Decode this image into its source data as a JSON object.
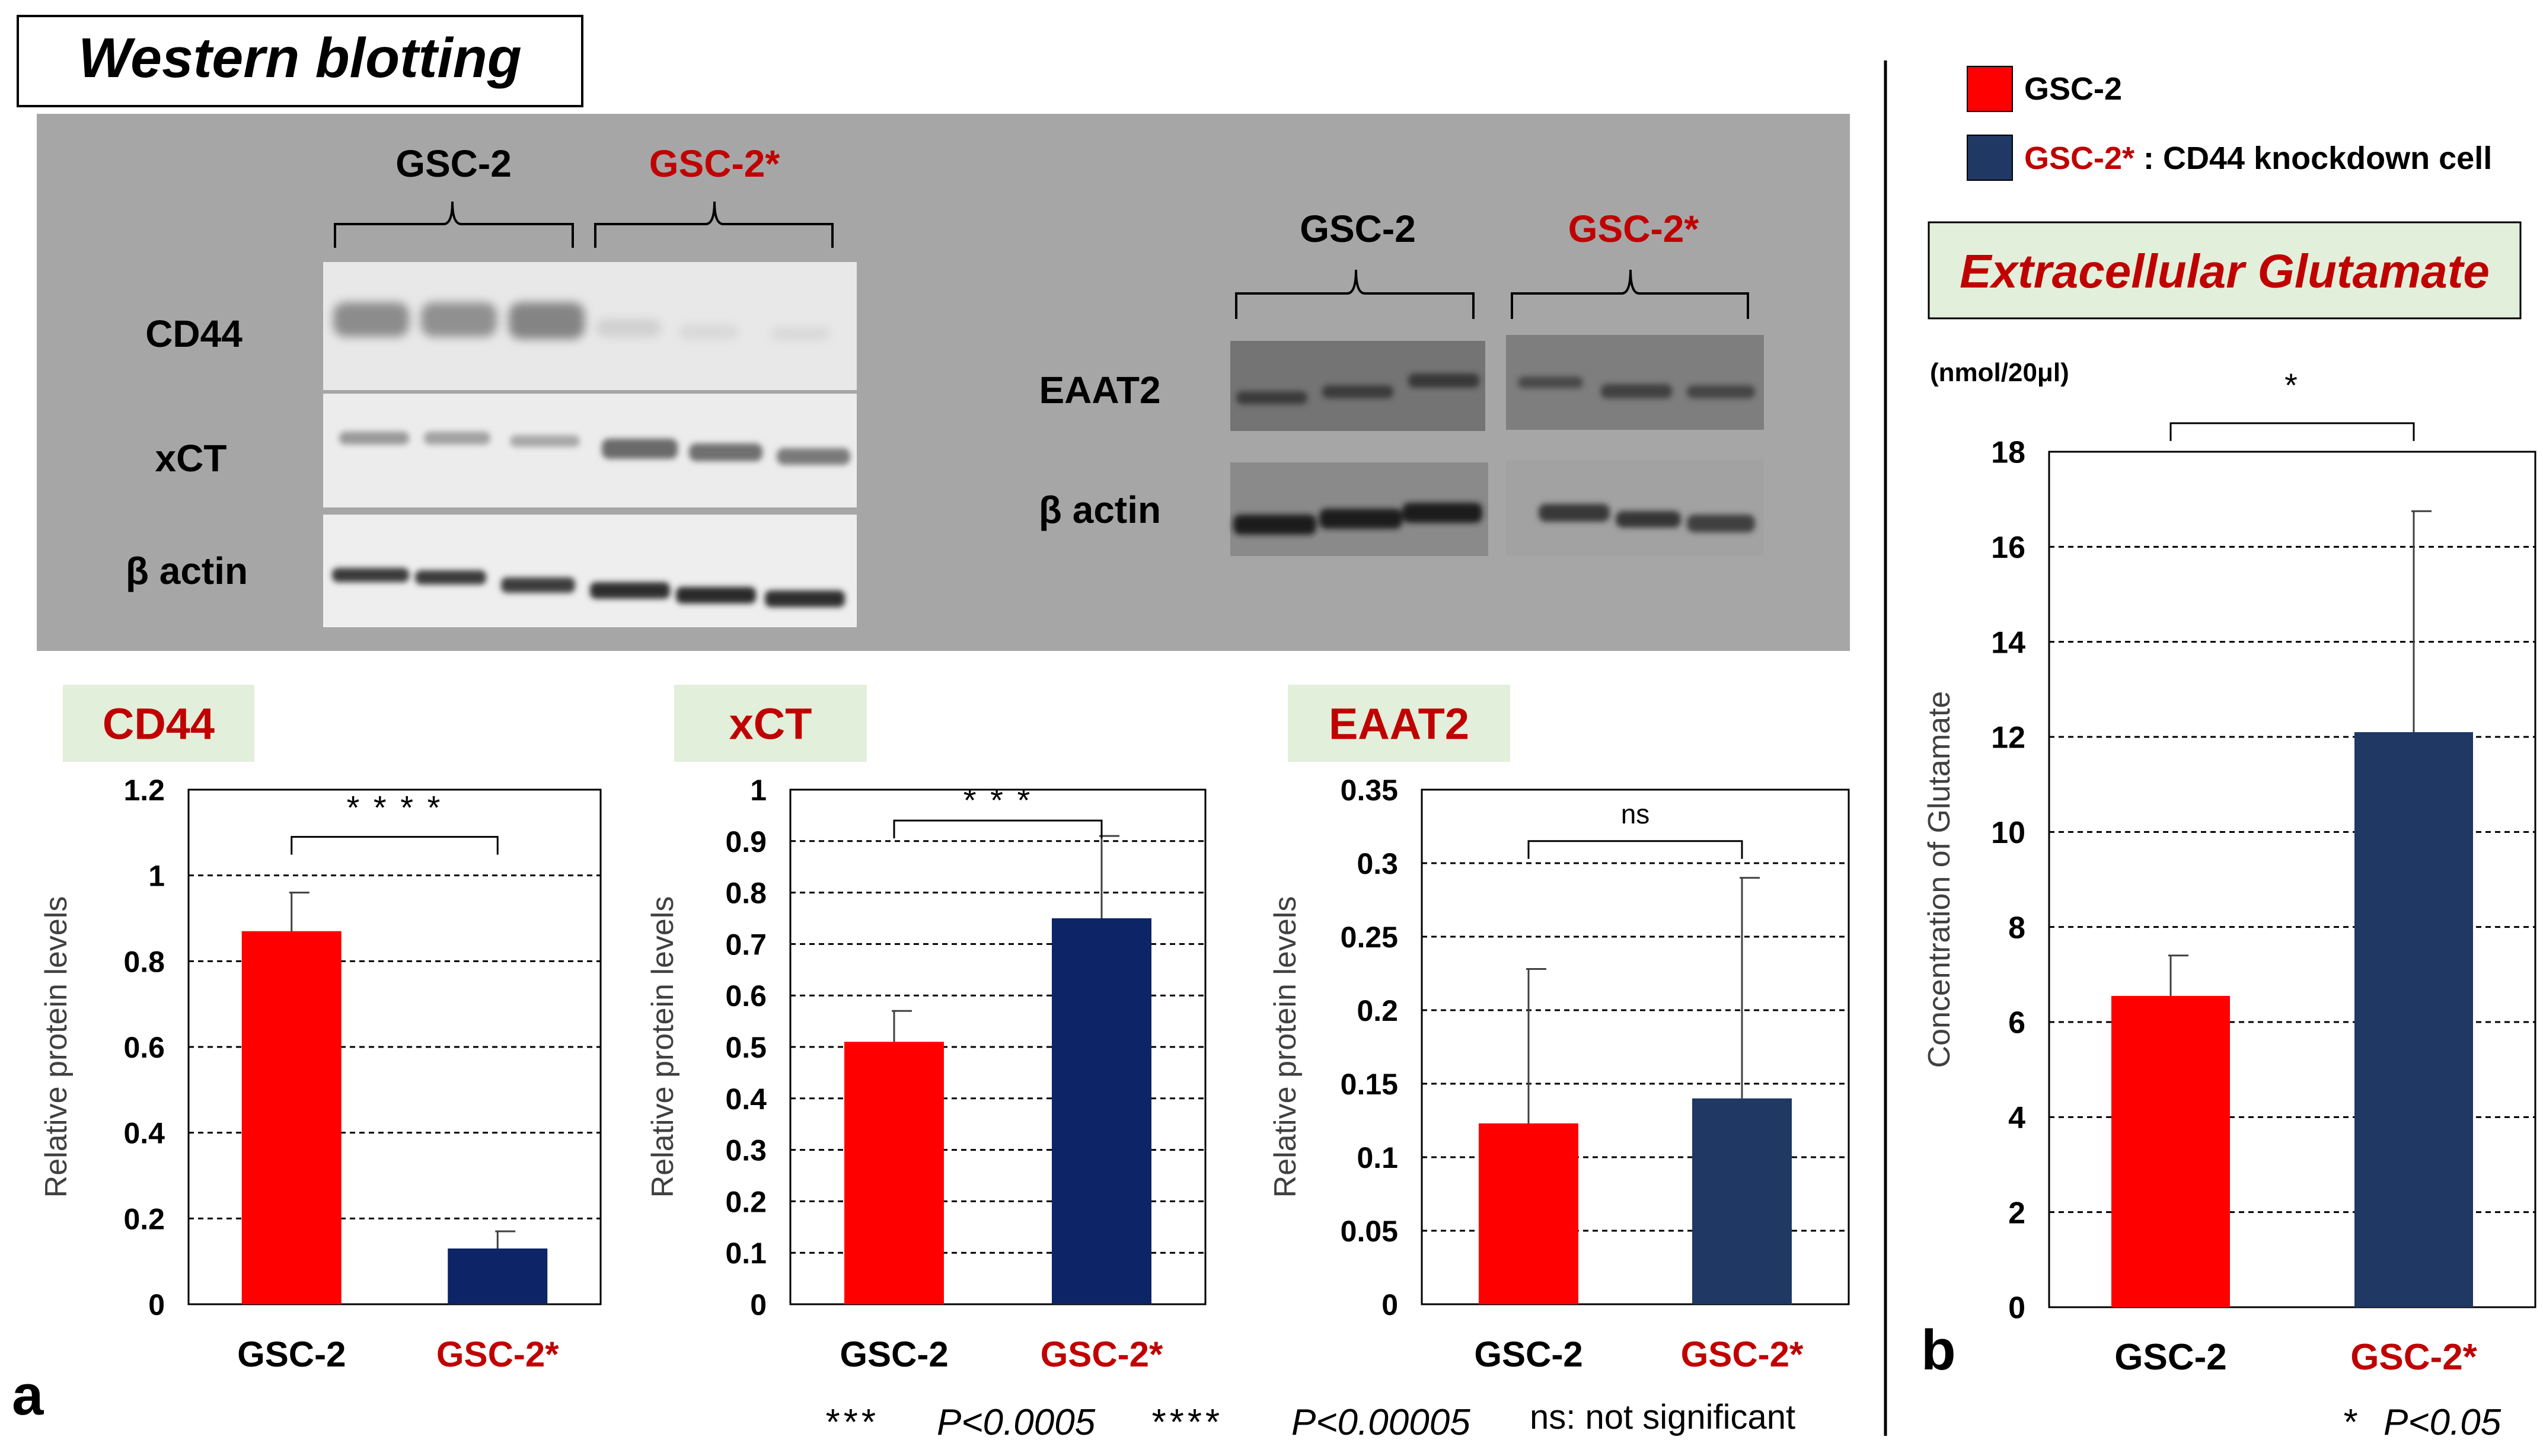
{
  "colors": {
    "gsc2": "#ff0000",
    "gsc2_star": "#0d2466",
    "gsc2_star_alt": "#1f3864",
    "label_red": "#c00000",
    "panel_gray": "#a6a6a6",
    "title_box_fill": "#e2efda",
    "glutamate_title": "#c00000"
  },
  "western": {
    "title": "Western blotting",
    "left_group_1": "GSC-2",
    "left_group_2": "GSC-2*",
    "row_labels": [
      "CD44",
      "xCT",
      "β actin"
    ],
    "right_group_1": "GSC-2",
    "right_group_2": "GSC-2*",
    "right_row_labels": [
      "EAAT2",
      "β actin"
    ]
  },
  "legend": {
    "item1": "GSC-2",
    "item2_red": "GSC-2*",
    "item2_rest": " : CD44 knockdown cell"
  },
  "panel_labels": {
    "a": "a",
    "b": "b"
  },
  "footnotes": {
    "stars3": "***",
    "p3": "P<0.0005",
    "stars4": "****",
    "p4": "P<0.00005",
    "ns": "ns: not significant",
    "b_star": "*",
    "b_p": "P<0.05"
  },
  "chart_data": [
    {
      "id": "cd44",
      "type": "bar",
      "title": "CD44",
      "ylabel": "Relative protein levels",
      "categories": [
        "GSC-2",
        "GSC-2*"
      ],
      "values": [
        0.87,
        0.13
      ],
      "errors": [
        0.09,
        0.04
      ],
      "ylim": [
        0,
        1.2
      ],
      "ticks": [
        0,
        0.2,
        0.4,
        0.6,
        0.8,
        1,
        1.2
      ],
      "tick_labels": [
        "0",
        "0.2",
        "0.4",
        "0.6",
        "0.8",
        "1",
        "1.2"
      ],
      "significance": "* * * *"
    },
    {
      "id": "xct",
      "type": "bar",
      "title": "xCT",
      "ylabel": "Relative protein levels",
      "categories": [
        "GSC-2",
        "GSC-2*"
      ],
      "values": [
        0.51,
        0.75
      ],
      "errors": [
        0.06,
        0.16
      ],
      "ylim": [
        0,
        1
      ],
      "ticks": [
        0,
        0.1,
        0.2,
        0.3,
        0.4,
        0.5,
        0.6,
        0.7,
        0.8,
        0.9,
        1
      ],
      "tick_labels": [
        "0",
        "0.1",
        "0.2",
        "0.3",
        "0.4",
        "0.5",
        "0.6",
        "0.7",
        "0.8",
        "0.9",
        "1"
      ],
      "significance": "* * *"
    },
    {
      "id": "eaat2",
      "type": "bar",
      "title": "EAAT2",
      "ylabel": "Relative protein levels",
      "categories": [
        "GSC-2",
        "GSC-2*"
      ],
      "values": [
        0.123,
        0.14
      ],
      "errors": [
        0.105,
        0.15
      ],
      "ylim": [
        0,
        0.35
      ],
      "ticks": [
        0,
        0.05,
        0.1,
        0.15,
        0.2,
        0.25,
        0.3,
        0.35
      ],
      "tick_labels": [
        "0",
        "0.05",
        "0.1",
        "0.15",
        "0.2",
        "0.25",
        "0.3",
        "0.35"
      ],
      "significance": "ns"
    },
    {
      "id": "glutamate",
      "type": "bar",
      "title": "Extracellular Glutamate",
      "unit": "(nmol/20μl)",
      "ylabel": "Concentration of Glutamate",
      "categories": [
        "GSC-2",
        "GSC-2*"
      ],
      "values": [
        6.55,
        12.1
      ],
      "errors": [
        0.85,
        4.65
      ],
      "ylim": [
        0,
        18
      ],
      "ticks": [
        0,
        2,
        4,
        6,
        8,
        10,
        12,
        14,
        16,
        18
      ],
      "tick_labels": [
        "0",
        "2",
        "4",
        "6",
        "8",
        "10",
        "12",
        "14",
        "16",
        "18"
      ],
      "significance": "*"
    }
  ]
}
